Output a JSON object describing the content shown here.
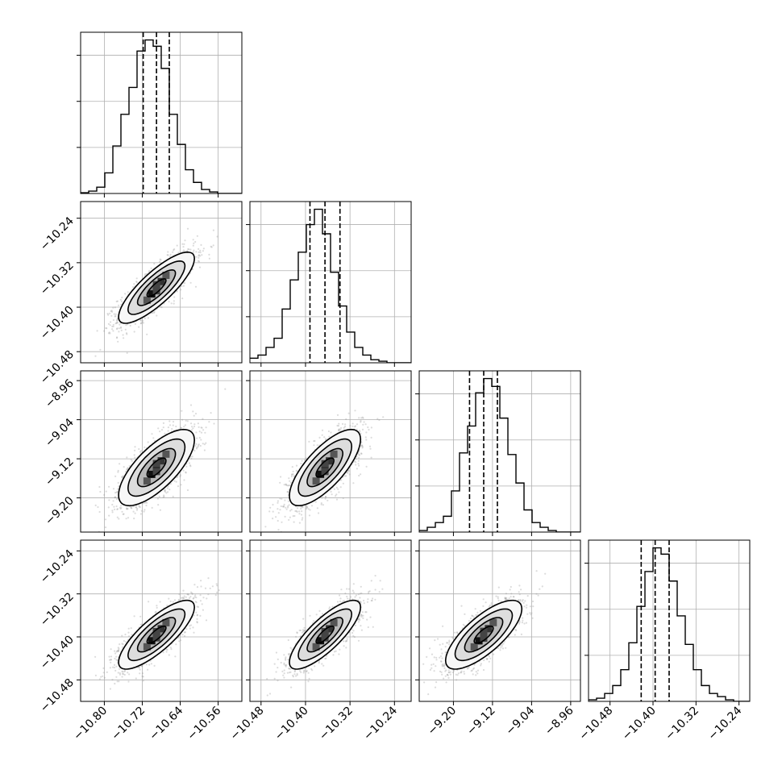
{
  "chart_data": {
    "type": "corner",
    "title": "",
    "parameters": [
      {
        "name": "",
        "range": [
          -10.85,
          -10.51
        ],
        "ticks": [
          -10.8,
          -10.72,
          -10.64,
          -10.56
        ],
        "tick_labels": [
          "−10.80",
          "−10.72",
          "−10.64",
          "−10.56"
        ],
        "quantiles": [
          -10.718,
          -10.69,
          -10.663
        ],
        "histogram": {
          "bin_edges": [
            -10.85,
            -10.833,
            -10.816,
            -10.799,
            -10.782,
            -10.765,
            -10.748,
            -10.731,
            -10.714,
            -10.697,
            -10.68,
            -10.663,
            -10.646,
            -10.629,
            -10.612,
            -10.595,
            -10.578,
            -10.561,
            -10.544,
            -10.527,
            -10.51
          ],
          "counts": [
            0.5,
            1.5,
            4,
            13,
            30,
            50,
            67,
            90,
            97,
            93,
            79,
            50,
            31,
            15,
            7,
            2.5,
            1,
            0,
            0,
            0
          ]
        }
      },
      {
        "name": "",
        "range": [
          -10.5,
          -10.21
        ],
        "ticks": [
          -10.48,
          -10.4,
          -10.32,
          -10.24
        ],
        "tick_labels": [
          "−10.48",
          "−10.40",
          "−10.32",
          "−10.24"
        ],
        "quantiles": [
          -10.392,
          -10.365,
          -10.338
        ],
        "histogram": {
          "bin_edges": [
            -10.5,
            -10.4855,
            -10.471,
            -10.4565,
            -10.442,
            -10.4275,
            -10.413,
            -10.3985,
            -10.384,
            -10.3695,
            -10.355,
            -10.3405,
            -10.326,
            -10.3115,
            -10.297,
            -10.2825,
            -10.268,
            -10.2535,
            -10.239,
            -10.2245,
            -10.21
          ],
          "counts": [
            3,
            5,
            10,
            16,
            35,
            54,
            72,
            90,
            100,
            84,
            59,
            37,
            20,
            10,
            5,
            2,
            1,
            0,
            0,
            0
          ]
        }
      },
      {
        "name": "",
        "range": [
          -9.27,
          -8.94
        ],
        "ticks": [
          -9.2,
          -9.12,
          -9.04,
          -8.96
        ],
        "tick_labels": [
          "−9.20",
          "−9.12",
          "−9.04",
          "−8.96"
        ],
        "quantiles": [
          -9.167,
          -9.138,
          -9.11
        ],
        "histogram": {
          "bin_edges": [
            -9.27,
            -9.2535,
            -9.237,
            -9.2205,
            -9.204,
            -9.1875,
            -9.171,
            -9.1545,
            -9.138,
            -9.1215,
            -9.105,
            -9.0885,
            -9.072,
            -9.0555,
            -9.039,
            -9.0225,
            -9.006,
            -8.9895,
            -8.973,
            -8.9565,
            -8.94
          ],
          "counts": [
            1,
            3,
            6,
            10,
            26,
            50,
            67,
            88,
            97,
            92,
            72,
            49,
            31,
            14,
            6,
            3,
            1,
            0,
            0,
            0
          ]
        }
      },
      {
        "name": "",
        "range": [
          -10.52,
          -10.22
        ],
        "ticks": [
          -10.48,
          -10.4,
          -10.32,
          -10.24
        ],
        "tick_labels": [
          "−10.48",
          "−10.40",
          "−10.32",
          "−10.24"
        ],
        "quantiles": [
          -10.422,
          -10.396,
          -10.37
        ],
        "histogram": {
          "bin_edges": [
            -10.52,
            -10.505,
            -10.49,
            -10.475,
            -10.46,
            -10.445,
            -10.43,
            -10.415,
            -10.4,
            -10.385,
            -10.37,
            -10.355,
            -10.34,
            -10.325,
            -10.31,
            -10.295,
            -10.28,
            -10.265,
            -10.25,
            -10.235,
            -10.22
          ],
          "counts": [
            1,
            2,
            5,
            10,
            20,
            37,
            60,
            82,
            97,
            93,
            76,
            54,
            36,
            20,
            10,
            5,
            3,
            1,
            0,
            0
          ]
        }
      }
    ],
    "pairs": [
      {
        "x": 0,
        "y": 1,
        "center": [
          -10.69,
          -10.365
        ],
        "sigma": [
          0.04,
          0.032
        ],
        "rho": 0.82
      },
      {
        "x": 0,
        "y": 2,
        "center": [
          -10.69,
          -9.138
        ],
        "sigma": [
          0.04,
          0.039
        ],
        "rho": 0.72
      },
      {
        "x": 1,
        "y": 2,
        "center": [
          -10.365,
          -9.138
        ],
        "sigma": [
          0.032,
          0.039
        ],
        "rho": 0.74
      },
      {
        "x": 0,
        "y": 3,
        "center": [
          -10.69,
          -10.396
        ],
        "sigma": [
          0.04,
          0.032
        ],
        "rho": 0.8
      },
      {
        "x": 1,
        "y": 3,
        "center": [
          -10.365,
          -10.396
        ],
        "sigma": [
          0.032,
          0.032
        ],
        "rho": 0.8
      },
      {
        "x": 2,
        "y": 3,
        "center": [
          -9.138,
          -10.396
        ],
        "sigma": [
          0.039,
          0.032
        ],
        "rho": 0.75
      }
    ],
    "contour_levels_sigma": [
      0.5,
      1,
      1.5,
      2
    ],
    "grid": true,
    "xlabel": "",
    "ylabel": "",
    "colors": {
      "line": "#000000",
      "grid": "#b0b0b0",
      "scatter": "#9a9a9a"
    }
  }
}
